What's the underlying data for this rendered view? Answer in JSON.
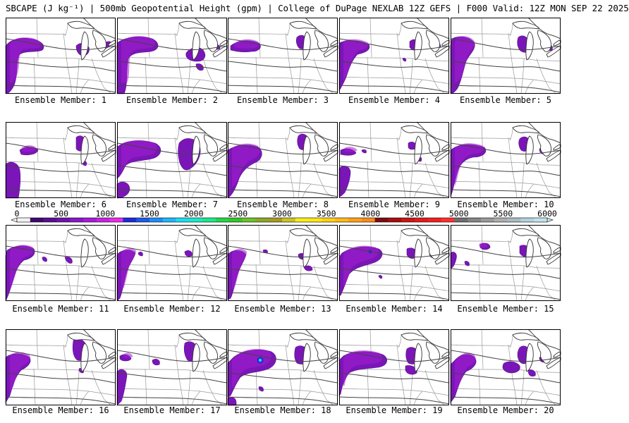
{
  "header": {
    "title": "SBCAPE (J kg⁻¹) | 500mb Geopotential Height (gpm) | College of DuPage NEXLAB 12Z GEFS | F000 Valid: 12Z MON SEP 22 2025"
  },
  "panels": [
    {
      "label": "Ensemble Member: 1"
    },
    {
      "label": "Ensemble Member: 2"
    },
    {
      "label": "Ensemble Member: 3"
    },
    {
      "label": "Ensemble Member: 4"
    },
    {
      "label": "Ensemble Member: 5"
    },
    {
      "label": "Ensemble Member: 6"
    },
    {
      "label": "Ensemble Member: 7"
    },
    {
      "label": "Ensemble Member: 8"
    },
    {
      "label": "Ensemble Member: 9"
    },
    {
      "label": "Ensemble Member: 10"
    },
    {
      "label": "Ensemble Member: 11"
    },
    {
      "label": "Ensemble Member: 12"
    },
    {
      "label": "Ensemble Member: 13"
    },
    {
      "label": "Ensemble Member: 14"
    },
    {
      "label": "Ensemble Member: 15"
    },
    {
      "label": "Ensemble Member: 16"
    },
    {
      "label": "Ensemble Member: 17"
    },
    {
      "label": "Ensemble Member: 18"
    },
    {
      "label": "Ensemble Member: 19"
    },
    {
      "label": "Ensemble Member: 20"
    }
  ],
  "colorbar": {
    "tick_labels": [
      "0",
      "500",
      "1000",
      "1500",
      "2000",
      "2500",
      "3000",
      "3500",
      "4000",
      "4500",
      "5000",
      "5500",
      "6000"
    ],
    "colors": [
      "#f2f2f2",
      "#3d0a6e",
      "#55108f",
      "#6c14ab",
      "#8a17c6",
      "#a81bd8",
      "#c722e4",
      "#e62ee8",
      "#1f2bd6",
      "#1f59ea",
      "#1f8cf5",
      "#20b6f7",
      "#1edcef",
      "#1de8c6",
      "#1ee887",
      "#27d44b",
      "#37c52a",
      "#6dc12a",
      "#8ca52a",
      "#a69a24",
      "#c7c42a",
      "#f5ee1a",
      "#ffe619",
      "#ffd11a",
      "#ffba1a",
      "#ffa21a",
      "#ff8a1a",
      "#7a0d0d",
      "#a50f0f",
      "#c91616",
      "#e01b1b",
      "#f02020",
      "#ff3030",
      "#6e6e6e",
      "#858585",
      "#9a9a9a",
      "#aeaeae",
      "#a9bcc4",
      "#b4d2de",
      "#c4e2ec"
    ]
  }
}
